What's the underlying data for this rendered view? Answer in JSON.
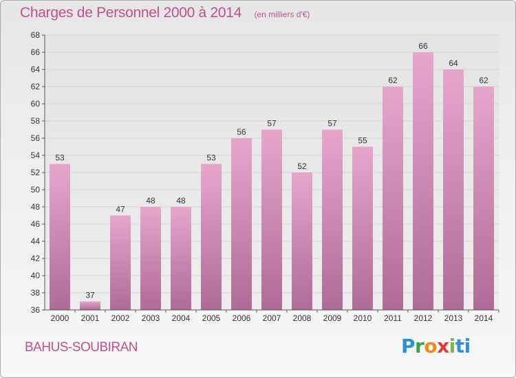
{
  "header": {
    "title": "Charges de Personnel 2000 à 2014",
    "subtitle": "(en milliers d'€)"
  },
  "footer": {
    "town": "BAHUS-SOUBIRAN",
    "logo": [
      "P",
      "r",
      "o",
      "x",
      "i",
      "ti"
    ]
  },
  "colors": {
    "bar_top": "#e6a6cc",
    "bar_bottom": "#b06a96",
    "title": "#c0508c"
  },
  "chart_data": {
    "type": "bar",
    "title": "Charges de Personnel 2000 à 2014",
    "subtitle": "(en milliers d'€)",
    "xlabel": "",
    "ylabel": "",
    "categories": [
      "2000",
      "2001",
      "2002",
      "2003",
      "2004",
      "2005",
      "2006",
      "2007",
      "2008",
      "2009",
      "2010",
      "2011",
      "2012",
      "2013",
      "2014"
    ],
    "values": [
      53,
      37,
      47,
      48,
      48,
      53,
      56,
      57,
      52,
      57,
      55,
      62,
      66,
      64,
      62
    ],
    "ylim": [
      36,
      68
    ],
    "yticks": [
      "36",
      "38",
      "40",
      "42",
      "44",
      "46",
      "48",
      "50",
      "52",
      "54",
      "56",
      "58",
      "60",
      "62",
      "64",
      "66",
      "68"
    ],
    "grid": true,
    "legend": "none"
  }
}
